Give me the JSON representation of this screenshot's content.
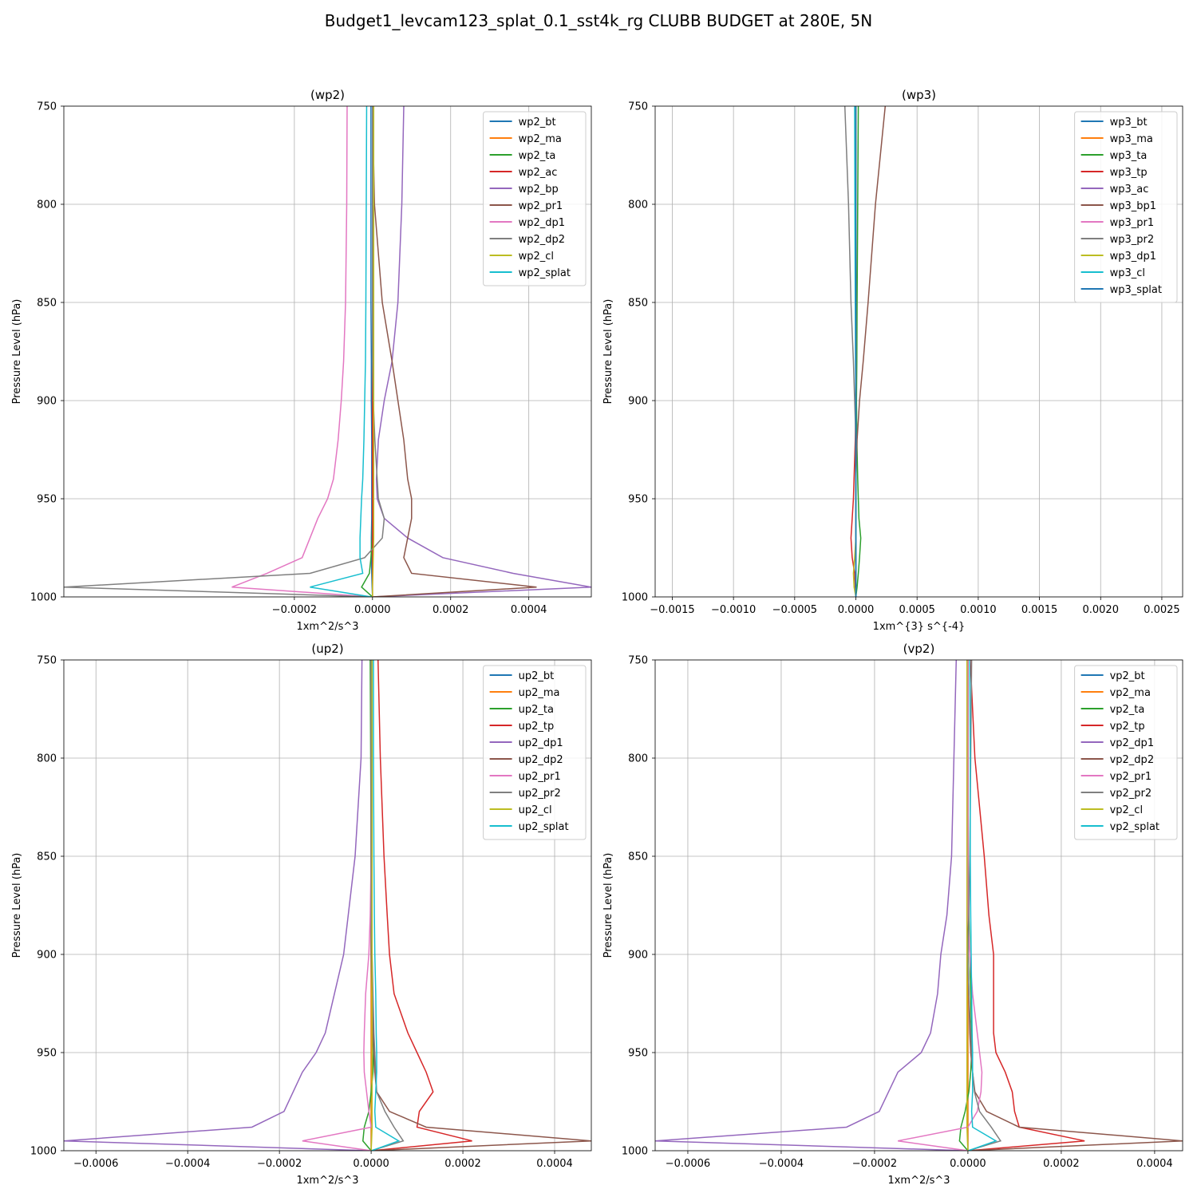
{
  "figure": {
    "title": "Budget1_levcam123_splat_0.1_sst4k_rg CLUBB BUDGET at 280E, 5N"
  },
  "chart_data": [
    {
      "type": "line",
      "title": "(wp2)",
      "xlabel": "1xm^2/s^3",
      "ylabel": "Pressure Level (hPa)",
      "xlim": [
        -0.00079,
        0.00056
      ],
      "ylim": [
        1000,
        750
      ],
      "xticks": [
        -0.0002,
        0.0,
        0.0002,
        0.0004
      ],
      "xtick_labels": [
        "−0.0002",
        "0.0000",
        "0.0002",
        "0.0004"
      ],
      "yticks": [
        750,
        800,
        850,
        900,
        950,
        1000
      ],
      "grid": true,
      "legend_position": "upper right",
      "levels": [
        750,
        800,
        850,
        880,
        900,
        920,
        940,
        950,
        960,
        970,
        980,
        988,
        995,
        1000
      ],
      "series": [
        {
          "name": "wp2_bt",
          "color": "#1f77b4",
          "values": [
            -4e-06,
            -4e-06,
            -4e-06,
            -3e-06,
            -3e-06,
            -2e-06,
            -2e-06,
            -2e-06,
            -2e-06,
            -3e-06,
            -3e-06,
            -2e-06,
            -1e-06,
            0.0
          ]
        },
        {
          "name": "wp2_ma",
          "color": "#ff7f0e",
          "values": [
            0.0,
            0.0,
            0.0,
            0.0,
            0.0,
            0.0,
            0.0,
            0.0,
            0.0,
            0.0,
            0.0,
            0.0,
            0.0,
            0.0
          ]
        },
        {
          "name": "wp2_ta",
          "color": "#2ca02c",
          "values": [
            0.0,
            0.0,
            0.0,
            0.0,
            0.0,
            0.0,
            0.0,
            0.0,
            0.0,
            -1e-06,
            -4e-06,
            -8e-06,
            -2.8e-05,
            0.0
          ]
        },
        {
          "name": "wp2_ac",
          "color": "#d62728",
          "values": [
            0.0,
            0.0,
            0.0,
            0.0,
            0.0,
            0.0,
            0.0,
            0.0,
            0.0,
            0.0,
            0.0,
            0.0,
            0.0,
            0.0
          ]
        },
        {
          "name": "wp2_bp",
          "color": "#9467bd",
          "values": [
            8e-05,
            7.5e-05,
            6.5e-05,
            5e-05,
            3e-05,
            1.5e-05,
            1e-05,
            1.2e-05,
            3e-05,
            9e-05,
            0.00018,
            0.00036,
            0.00056,
            0.0
          ]
        },
        {
          "name": "wp2_pr1",
          "color": "#8c564b",
          "values": [
            0.0,
            5e-06,
            2.5e-05,
            5e-05,
            6.5e-05,
            8e-05,
            9e-05,
            0.0001,
            0.0001,
            9e-05,
            8e-05,
            0.0001,
            0.00042,
            0.0
          ]
        },
        {
          "name": "wp2_dp1",
          "color": "#e377c2",
          "values": [
            -6.5e-05,
            -6.6e-05,
            -6.9e-05,
            -7.4e-05,
            -8e-05,
            -8.8e-05,
            -0.0001,
            -0.000115,
            -0.00014,
            -0.00016,
            -0.00018,
            -0.00027,
            -0.00036,
            0.0
          ]
        },
        {
          "name": "wp2_dp2",
          "color": "#7f7f7f",
          "values": [
            0.0,
            0.0,
            0.0,
            0.0,
            2e-06,
            6e-06,
            1.2e-05,
            1.5e-05,
            3e-05,
            2.5e-05,
            -2e-05,
            -0.00016,
            -0.00079,
            0.0
          ]
        },
        {
          "name": "wp2_cl",
          "color": "#bcbd22",
          "values": [
            3e-06,
            3e-06,
            3e-06,
            3e-06,
            3e-06,
            3e-06,
            3e-06,
            3e-06,
            3e-06,
            3e-06,
            2e-06,
            1e-06,
            0.0,
            0.0
          ]
        },
        {
          "name": "wp2_splat",
          "color": "#17becf",
          "values": [
            -1.5e-05,
            -1.6e-05,
            -1.7e-05,
            -1.8e-05,
            -2e-05,
            -2.2e-05,
            -2.5e-05,
            -2.8e-05,
            -3e-05,
            -3.2e-05,
            -3.2e-05,
            -2.5e-05,
            -0.00016,
            -3e-06
          ]
        }
      ]
    },
    {
      "type": "line",
      "title": "(wp3)",
      "xlabel": "1xm^{3} s^{-4}",
      "ylabel": "Pressure Level (hPa)",
      "xlim": [
        -0.00164,
        0.00267
      ],
      "ylim": [
        1000,
        750
      ],
      "xticks": [
        -0.0015,
        -0.001,
        -0.0005,
        0.0,
        0.0005,
        0.001,
        0.0015,
        0.002,
        0.0025
      ],
      "xtick_labels": [
        "−0.0015",
        "−0.0010",
        "−0.0005",
        "0.0000",
        "0.0005",
        "0.0010",
        "0.0015",
        "0.0020",
        "0.0025"
      ],
      "yticks": [
        750,
        800,
        850,
        900,
        950,
        1000
      ],
      "grid": true,
      "legend_position": "upper right",
      "levels": [
        750,
        800,
        850,
        880,
        900,
        920,
        940,
        950,
        960,
        970,
        980,
        988,
        995,
        1000
      ],
      "series": [
        {
          "name": "wp3_bt",
          "color": "#1f77b4",
          "values": [
            0.0,
            0.0,
            0.0,
            0.0,
            0.0,
            0.0,
            0.0,
            0.0,
            0.0,
            0.0,
            0.0,
            0.0,
            0.0,
            0.0
          ]
        },
        {
          "name": "wp3_ma",
          "color": "#ff7f0e",
          "values": [
            0.0,
            0.0,
            0.0,
            0.0,
            0.0,
            0.0,
            0.0,
            0.0,
            0.0,
            0.0,
            0.0,
            0.0,
            0.0,
            0.0
          ]
        },
        {
          "name": "wp3_ta",
          "color": "#2ca02c",
          "values": [
            2e-05,
            1.5e-05,
            1e-05,
            8e-06,
            5e-06,
            8e-06,
            1.5e-05,
            2e-05,
            2.5e-05,
            4e-05,
            3e-05,
            2e-05,
            1e-05,
            0.0
          ]
        },
        {
          "name": "wp3_tp",
          "color": "#d62728",
          "values": [
            0.0,
            0.0,
            0.0,
            0.0,
            0.0,
            -5e-06,
            -1.5e-05,
            -2e-05,
            -3e-05,
            -4e-05,
            -3e-05,
            -1e-05,
            -5e-06,
            0.0
          ]
        },
        {
          "name": "wp3_ac",
          "color": "#9467bd",
          "values": [
            0.0,
            0.0,
            0.0,
            0.0,
            0.0,
            0.0,
            0.0,
            0.0,
            0.0,
            0.0,
            0.0,
            0.0,
            0.0,
            0.0
          ]
        },
        {
          "name": "wp3_bp1",
          "color": "#8c564b",
          "values": [
            0.00024,
            0.00016,
            0.0001,
            6e-05,
            3e-05,
            1e-05,
            0.0,
            0.0,
            0.0,
            0.0,
            0.0,
            0.0,
            0.0,
            0.0
          ]
        },
        {
          "name": "wp3_pr1",
          "color": "#e377c2",
          "values": [
            0.0,
            0.0,
            0.0,
            0.0,
            0.0,
            0.0,
            0.0,
            0.0,
            0.0,
            0.0,
            0.0,
            0.0,
            0.0,
            0.0
          ]
        },
        {
          "name": "wp3_pr2",
          "color": "#7f7f7f",
          "values": [
            -9e-05,
            -6e-05,
            -4e-05,
            -2e-05,
            -1e-05,
            0.0,
            0.0,
            0.0,
            0.0,
            0.0,
            0.0,
            0.0,
            0.0,
            0.0
          ]
        },
        {
          "name": "wp3_dp1",
          "color": "#bcbd22",
          "values": [
            0.0,
            0.0,
            0.0,
            0.0,
            0.0,
            0.0,
            0.0,
            0.0,
            0.0,
            0.0,
            -1e-05,
            -2e-05,
            -1.5e-05,
            0.0
          ]
        },
        {
          "name": "wp3_cl",
          "color": "#17becf",
          "values": [
            -1e-05,
            -8e-06,
            -5e-06,
            -3e-06,
            0.0,
            0.0,
            0.0,
            0.0,
            0.0,
            0.0,
            0.0,
            0.0,
            0.0,
            0.0
          ]
        },
        {
          "name": "wp3_splat",
          "color": "#1f77b4",
          "values": [
            0.0,
            0.0,
            0.0,
            0.0,
            0.0,
            0.0,
            0.0,
            0.0,
            0.0,
            0.0,
            0.0,
            0.0,
            0.0,
            0.0
          ]
        }
      ]
    },
    {
      "type": "line",
      "title": "(up2)",
      "xlabel": "1xm^2/s^3",
      "ylabel": "Pressure Level (hPa)",
      "xlim": [
        -0.00067,
        0.00048
      ],
      "ylim": [
        1000,
        750
      ],
      "xticks": [
        -0.0006,
        -0.0004,
        -0.0002,
        0.0,
        0.0002,
        0.0004
      ],
      "xtick_labels": [
        "−0.0006",
        "−0.0004",
        "−0.0002",
        "0.0000",
        "0.0002",
        "0.0004"
      ],
      "yticks": [
        750,
        800,
        850,
        900,
        950,
        1000
      ],
      "grid": true,
      "legend_position": "upper right",
      "levels": [
        750,
        800,
        850,
        880,
        900,
        920,
        940,
        950,
        960,
        970,
        980,
        988,
        995,
        1000
      ],
      "series": [
        {
          "name": "up2_bt",
          "color": "#1f77b4",
          "values": [
            0.0,
            0.0,
            0.0,
            0.0,
            0.0,
            0.0,
            0.0,
            0.0,
            0.0,
            0.0,
            0.0,
            0.0,
            0.0,
            0.0
          ]
        },
        {
          "name": "up2_ma",
          "color": "#ff7f0e",
          "values": [
            0.0,
            0.0,
            0.0,
            0.0,
            0.0,
            0.0,
            0.0,
            0.0,
            0.0,
            0.0,
            0.0,
            0.0,
            0.0,
            0.0
          ]
        },
        {
          "name": "up2_ta",
          "color": "#2ca02c",
          "values": [
            -2e-06,
            -1e-06,
            0.0,
            0.0,
            2e-06,
            3e-06,
            4e-06,
            5e-06,
            4e-06,
            0.0,
            -5e-06,
            -1.5e-05,
            -1.8e-05,
            0.0
          ]
        },
        {
          "name": "up2_tp",
          "color": "#d62728",
          "values": [
            1.5e-05,
            2e-05,
            2.8e-05,
            3.5e-05,
            4e-05,
            5e-05,
            8e-05,
            0.0001,
            0.00012,
            0.000135,
            0.000105,
            0.0001,
            0.00022,
            0.0
          ]
        },
        {
          "name": "up2_dp1",
          "color": "#9467bd",
          "values": [
            -2e-05,
            -2.2e-05,
            -3.5e-05,
            -5e-05,
            -6e-05,
            -8e-05,
            -0.0001,
            -0.00012,
            -0.00015,
            -0.00017,
            -0.00019,
            -0.00026,
            -0.00067,
            0.0
          ]
        },
        {
          "name": "up2_dp2",
          "color": "#8c564b",
          "values": [
            0.0,
            0.0,
            0.0,
            0.0,
            0.0,
            2e-06,
            4e-06,
            6e-06,
            8e-06,
            1.2e-05,
            4e-05,
            0.00012,
            0.00048,
            0.0
          ]
        },
        {
          "name": "up2_pr1",
          "color": "#e377c2",
          "values": [
            0.0,
            0.0,
            0.0,
            -2e-06,
            -5e-06,
            -1.2e-05,
            -1.5e-05,
            -1.6e-05,
            -1.5e-05,
            -1e-05,
            -5e-06,
            0.0,
            -0.00015,
            0.0
          ]
        },
        {
          "name": "up2_pr2",
          "color": "#7f7f7f",
          "values": [
            0.0,
            0.0,
            0.0,
            0.0,
            2e-06,
            4e-06,
            6e-06,
            8e-06,
            1e-05,
            1.2e-05,
            3e-05,
            5e-05,
            7e-05,
            0.0
          ]
        },
        {
          "name": "up2_cl",
          "color": "#bcbd22",
          "values": [
            2e-06,
            2e-06,
            2e-06,
            2e-06,
            2e-06,
            2e-06,
            2e-06,
            2e-06,
            2e-06,
            2e-06,
            2e-06,
            2e-06,
            1e-06,
            0.0
          ]
        },
        {
          "name": "up2_splat",
          "color": "#17becf",
          "values": [
            5e-06,
            5e-06,
            6e-06,
            7e-06,
            8e-06,
            1e-05,
            1.1e-05,
            1.2e-05,
            1.2e-05,
            1e-05,
            8e-06,
            1e-05,
            6e-05,
            1e-06
          ]
        }
      ]
    },
    {
      "type": "line",
      "title": "(vp2)",
      "xlabel": "1xm^2/s^3",
      "ylabel": "Pressure Level (hPa)",
      "xlim": [
        -0.00067,
        0.00046
      ],
      "ylim": [
        1000,
        750
      ],
      "xticks": [
        -0.0006,
        -0.0004,
        -0.0002,
        0.0,
        0.0002,
        0.0004
      ],
      "xtick_labels": [
        "−0.0006",
        "−0.0004",
        "−0.0002",
        "0.0000",
        "0.0002",
        "0.0004"
      ],
      "yticks": [
        750,
        800,
        850,
        900,
        950,
        1000
      ],
      "grid": true,
      "legend_position": "upper right",
      "levels": [
        750,
        800,
        850,
        880,
        900,
        920,
        940,
        950,
        960,
        970,
        980,
        988,
        995,
        1000
      ],
      "series": [
        {
          "name": "vp2_bt",
          "color": "#1f77b4",
          "values": [
            0.0,
            0.0,
            0.0,
            0.0,
            0.0,
            0.0,
            0.0,
            0.0,
            0.0,
            0.0,
            0.0,
            0.0,
            0.0,
            0.0
          ]
        },
        {
          "name": "vp2_ma",
          "color": "#ff7f0e",
          "values": [
            0.0,
            0.0,
            0.0,
            0.0,
            0.0,
            0.0,
            0.0,
            0.0,
            0.0,
            0.0,
            0.0,
            0.0,
            0.0,
            0.0
          ]
        },
        {
          "name": "vp2_ta",
          "color": "#2ca02c",
          "values": [
            0.0,
            0.0,
            0.0,
            2e-06,
            4e-06,
            6e-06,
            8e-06,
            8e-06,
            6e-06,
            2e-06,
            -6e-06,
            -1.5e-05,
            -1.8e-05,
            0.0
          ]
        },
        {
          "name": "vp2_tp",
          "color": "#d62728",
          "values": [
            5e-06,
            1.5e-05,
            3.5e-05,
            4.5e-05,
            5.5e-05,
            5.5e-05,
            5.5e-05,
            6e-05,
            8e-05,
            9.5e-05,
            0.0001,
            0.00011,
            0.00025,
            0.0
          ]
        },
        {
          "name": "vp2_dp1",
          "color": "#9467bd",
          "values": [
            -2.5e-05,
            -3e-05,
            -3.5e-05,
            -4.5e-05,
            -5.8e-05,
            -6.5e-05,
            -8e-05,
            -0.0001,
            -0.00015,
            -0.00017,
            -0.00019,
            -0.00026,
            -0.00067,
            0.0
          ]
        },
        {
          "name": "vp2_dp2",
          "color": "#8c564b",
          "values": [
            0.0,
            0.0,
            0.0,
            0.0,
            0.0,
            2e-06,
            4e-06,
            6e-06,
            1e-05,
            1.5e-05,
            4e-05,
            0.00011,
            0.00046,
            0.0
          ]
        },
        {
          "name": "vp2_pr1",
          "color": "#e377c2",
          "values": [
            0.0,
            0.0,
            0.0,
            0.0,
            4e-06,
            1e-05,
            2e-05,
            2.5e-05,
            3e-05,
            2.8e-05,
            2e-05,
            0.0,
            -0.00015,
            0.0
          ]
        },
        {
          "name": "vp2_pr2",
          "color": "#7f7f7f",
          "values": [
            8e-06,
            6e-06,
            4e-06,
            2e-06,
            0.0,
            2e-06,
            6e-06,
            8e-06,
            1e-05,
            1.4e-05,
            2.5e-05,
            5e-05,
            7e-05,
            0.0
          ]
        },
        {
          "name": "vp2_cl",
          "color": "#bcbd22",
          "values": [
            -2e-06,
            -2e-06,
            -2e-06,
            -2e-06,
            -2e-06,
            -2e-06,
            -2e-06,
            -2e-06,
            -2e-06,
            -2e-06,
            -2e-06,
            -2e-06,
            -1e-06,
            0.0
          ]
        },
        {
          "name": "vp2_splat",
          "color": "#17becf",
          "values": [
            4e-06,
            5e-06,
            5e-06,
            6e-06,
            7e-06,
            8e-06,
            9e-06,
            1e-05,
            1e-05,
            1e-05,
            8e-06,
            1e-05,
            6e-05,
            1e-06
          ]
        }
      ]
    }
  ]
}
